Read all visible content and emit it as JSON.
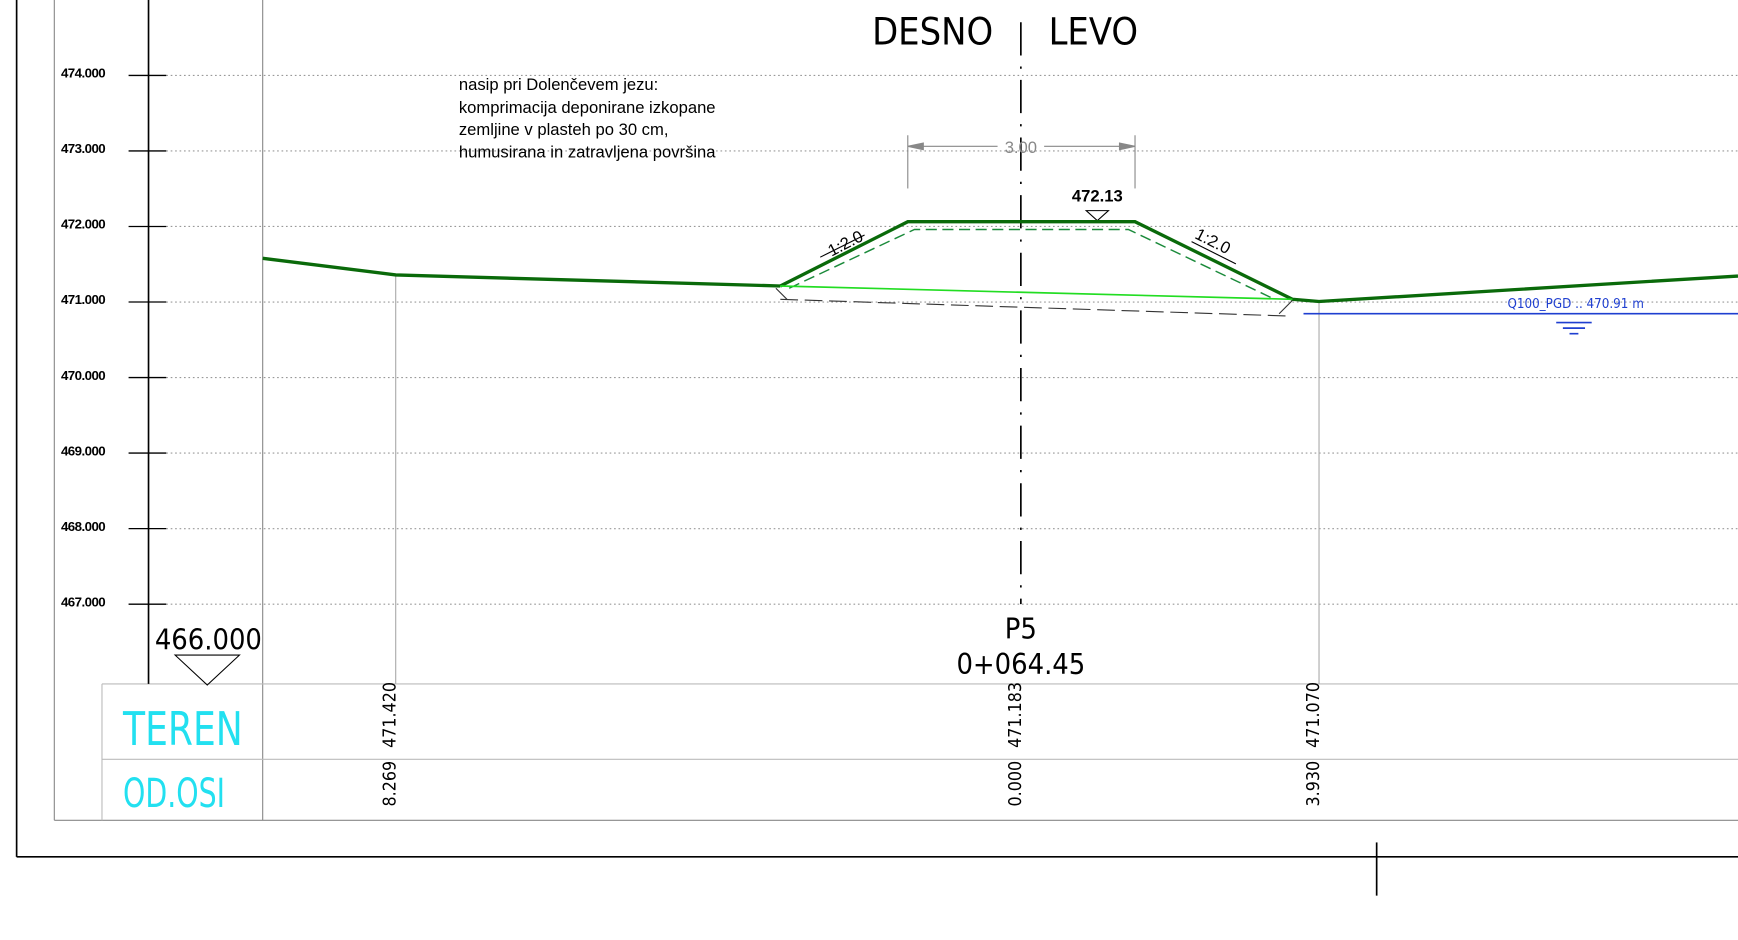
{
  "axis": {
    "elevations": [
      "474.000",
      "473.000",
      "472.000",
      "471.000",
      "470.000",
      "469.000",
      "468.000",
      "467.000"
    ],
    "datum": "466.000"
  },
  "sides": {
    "right": "DESNO",
    "left": "LEVO"
  },
  "note": [
    "nasip pri Dolenčevem jezu:",
    "komprimacija deponirane izkopane",
    "zemljine v plasteh po 30 cm,",
    "humusirana in zatravljena površina"
  ],
  "dimension": "3.00",
  "crest_level": "472.13",
  "slopes": [
    "1:2.0",
    "1:2.0"
  ],
  "water": "Q100_PGD .. 470.91 m",
  "profile": {
    "name": "P5",
    "station": "0+064.45"
  },
  "table": {
    "rows": [
      "TEREN",
      "OD.OSI"
    ],
    "columns": [
      [
        "471.420",
        "8.269"
      ],
      [
        "471.183",
        "0.000"
      ],
      [
        "471.070",
        "3.930"
      ]
    ]
  }
}
